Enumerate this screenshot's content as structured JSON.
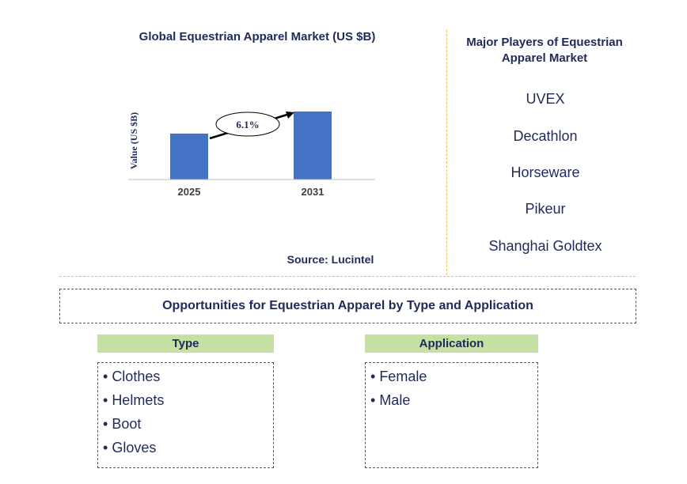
{
  "chart_data": {
    "type": "bar",
    "title": "Global Equestrian Apparel Market (US $B)",
    "ylabel": "Value (US $B)",
    "categories": [
      "2025",
      "2031"
    ],
    "values": [
      1.0,
      1.48
    ],
    "annotation": "6.1%",
    "source": "Source: Lucintel",
    "bar_color": "#4472c4"
  },
  "players": {
    "title": "Major Players of Equestrian Apparel Market",
    "items": [
      "UVEX",
      "Decathlon",
      "Horseware",
      "Pikeur",
      "Shanghai Goldtex"
    ]
  },
  "opportunities": {
    "title": "Opportunities for Equestrian Apparel by Type and Application",
    "type": {
      "header": "Type",
      "items": [
        "Clothes",
        "Helmets",
        "Boot",
        "Gloves"
      ]
    },
    "application": {
      "header": "Application",
      "items": [
        "Female",
        "Male"
      ]
    }
  },
  "colors": {
    "text": "#1f2a5a",
    "header_fill": "#c6e0a4",
    "separator": "#f0c04a"
  }
}
